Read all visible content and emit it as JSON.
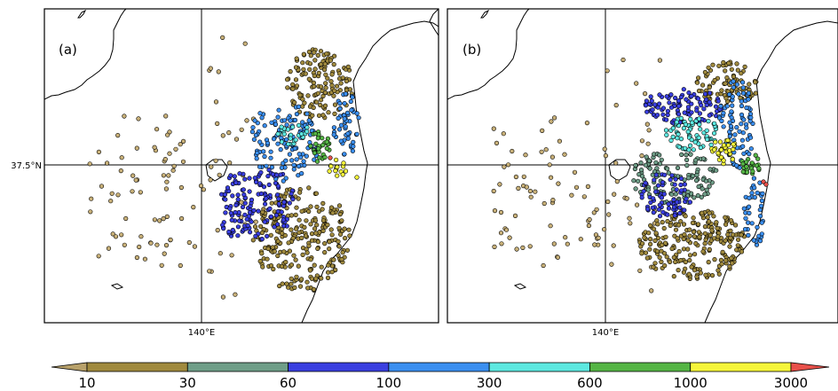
{
  "panels": [
    {
      "label": "(a)",
      "lon_label": "140°E",
      "lat_label": "37.5°N"
    },
    {
      "label": "(b)",
      "lon_label": "140°E",
      "lat_label": ""
    }
  ],
  "colorbar": {
    "ticks": [
      "10",
      "30",
      "60",
      "100",
      "300",
      "600",
      "1000",
      "3000"
    ],
    "colors": [
      "#b8a16a",
      "#a08a3e",
      "#6f9e88",
      "#3a3fe0",
      "#3b8ff0",
      "#5de8e0",
      "#55b545",
      "#f5f53a",
      "#e8504a"
    ]
  },
  "colors": {
    "land_olive": "#a08a3e",
    "land_teal": "#6f9e88",
    "blue": "#3a3fe0",
    "sky": "#3b8ff0",
    "cyan": "#5de8e0",
    "green": "#55b545",
    "yellow": "#f5f53a",
    "red": "#e8504a",
    "tan": "#c8b078"
  }
}
